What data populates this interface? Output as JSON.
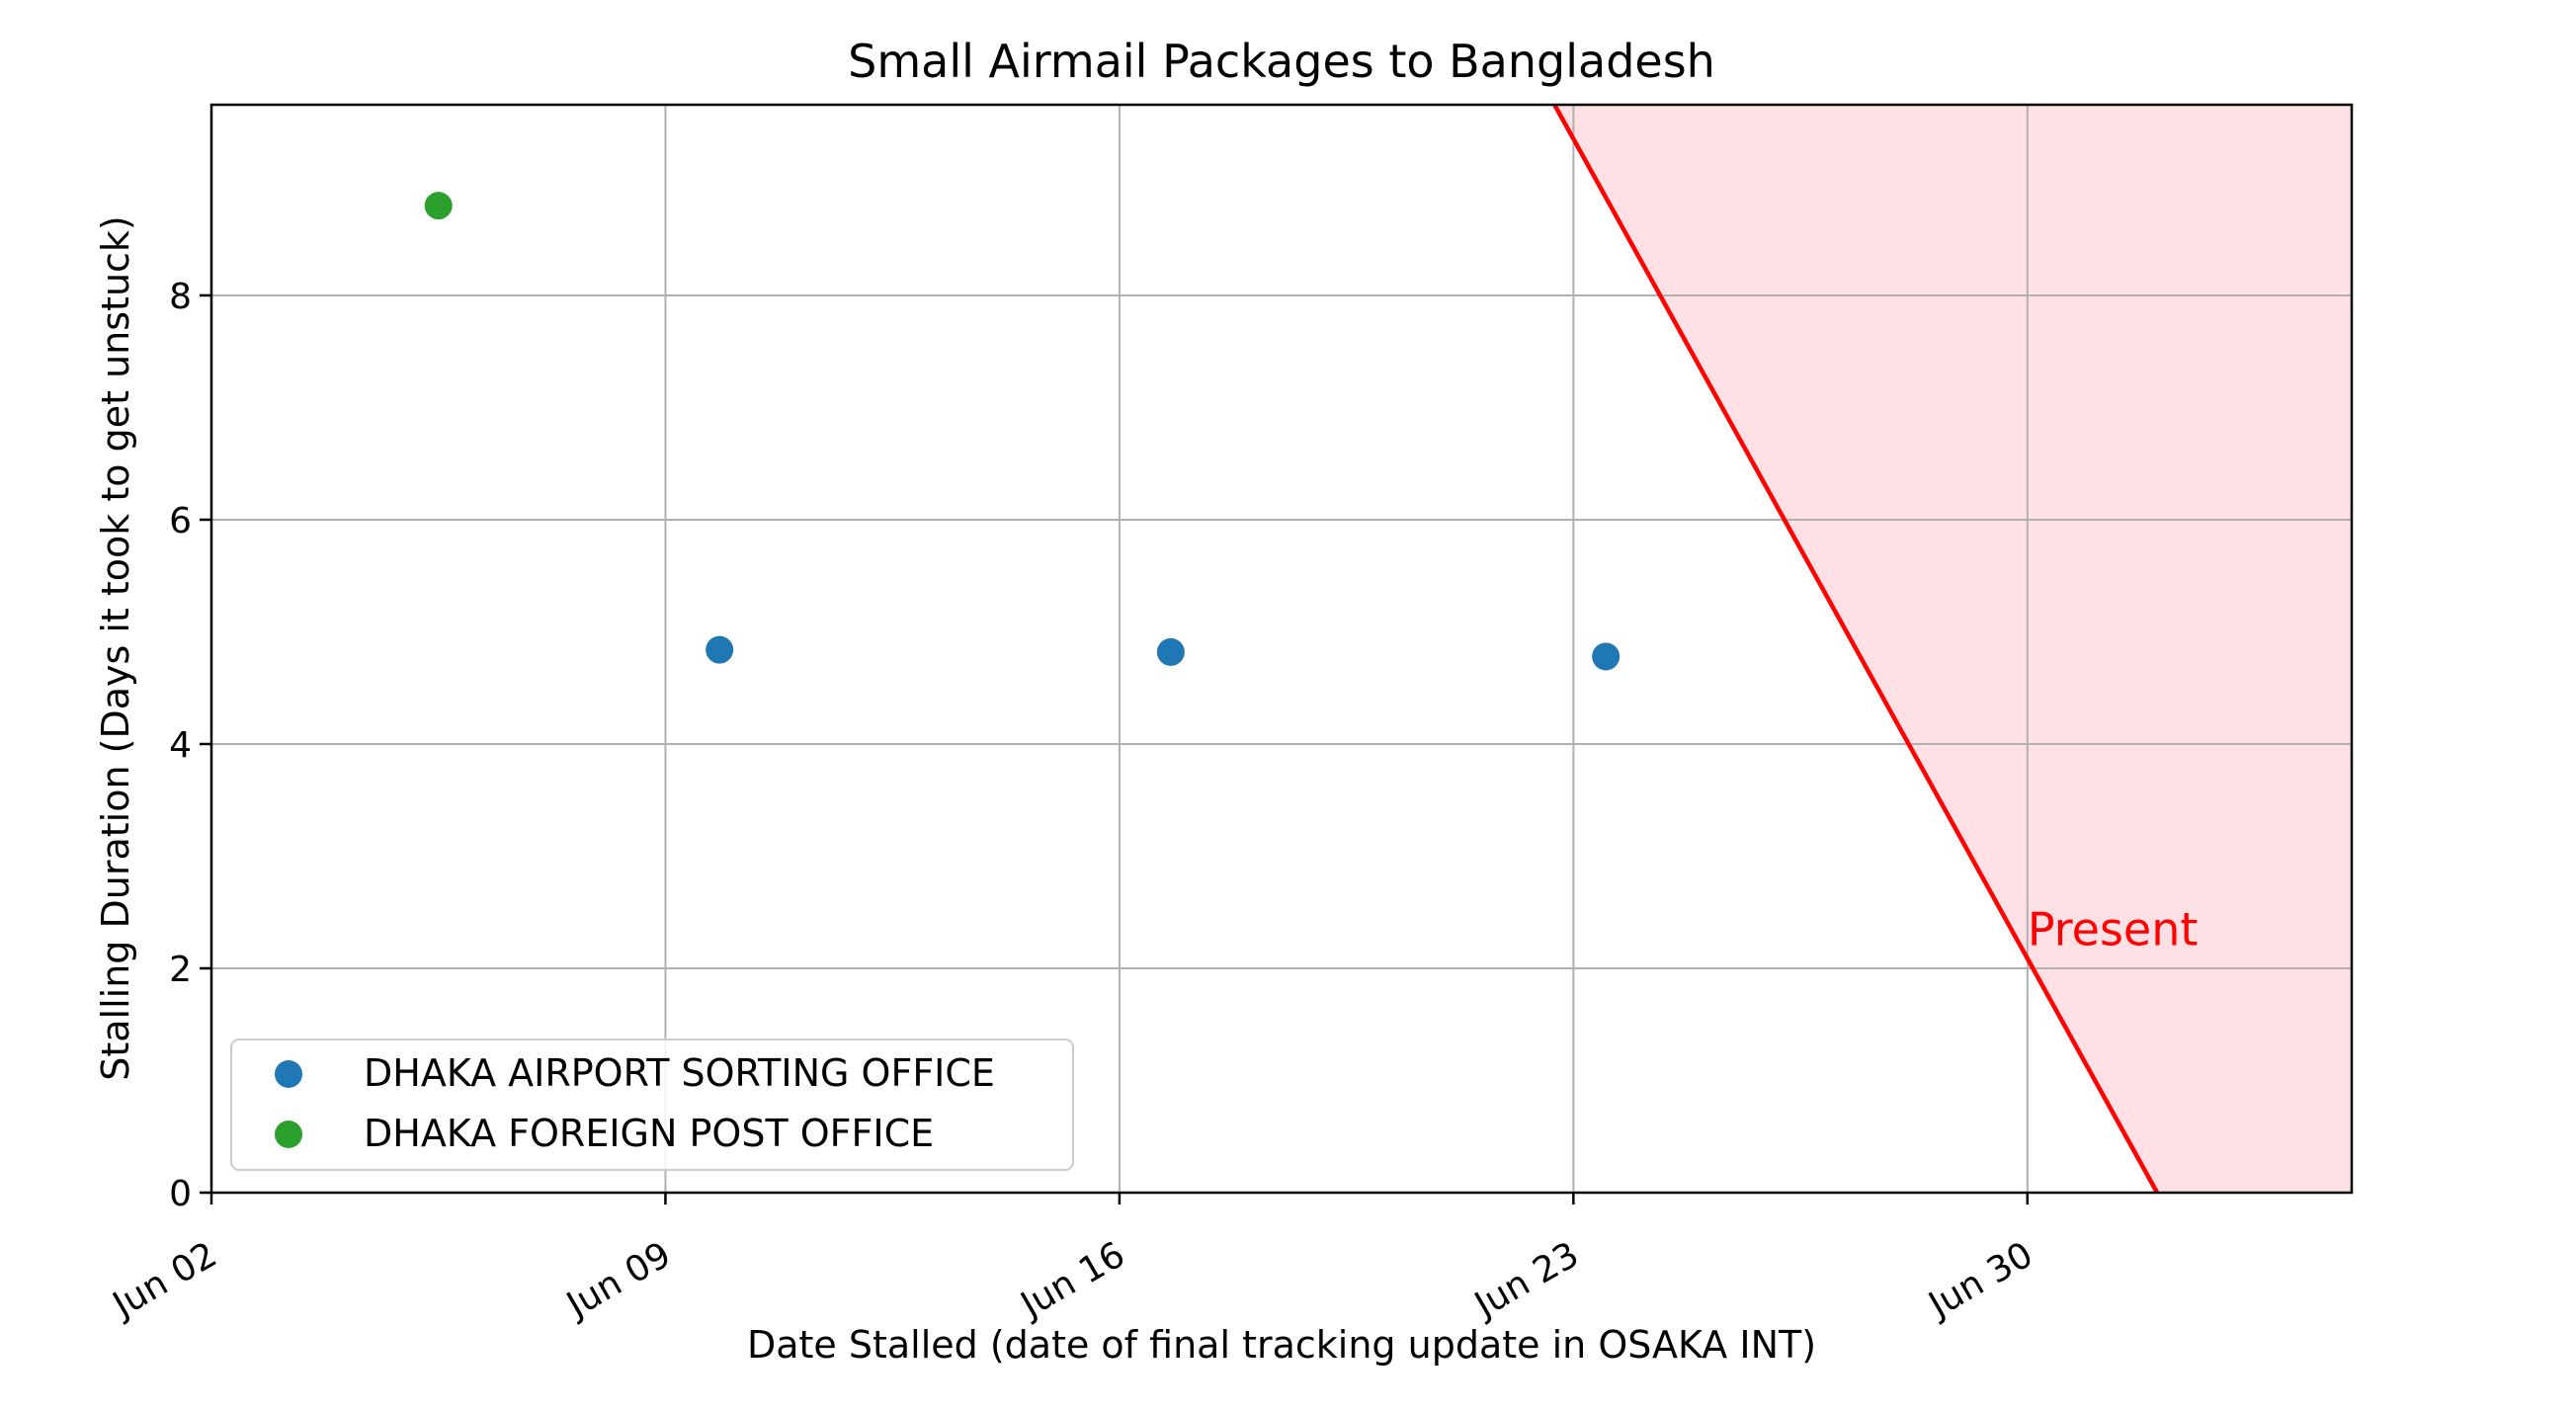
{
  "chart_data": {
    "type": "scatter",
    "title": "Small Airmail Packages to Bangladesh",
    "xlabel": "Date Stalled (date of final tracking update in OSAKA INT)",
    "ylabel": "Stalling Duration (Days it took to get unstuck)",
    "xlim": [
      "2024-06-02",
      "2024-07-05"
    ],
    "ylim": [
      0,
      9.7
    ],
    "x_ticks": [
      {
        "date": "2024-06-02",
        "label": "Jun 02"
      },
      {
        "date": "2024-06-09",
        "label": "Jun 09"
      },
      {
        "date": "2024-06-16",
        "label": "Jun 16"
      },
      {
        "date": "2024-06-23",
        "label": "Jun 23"
      },
      {
        "date": "2024-06-30",
        "label": "Jun 30"
      }
    ],
    "y_ticks": [
      0,
      2,
      4,
      6,
      8
    ],
    "grid": true,
    "legend_position": "lower-left",
    "series": [
      {
        "name": "DHAKA AIRPORT SORTING OFFICE",
        "color": "#1f77b4",
        "points": [
          {
            "x": "2024-06-09 20:00",
            "y": 4.84
          },
          {
            "x": "2024-06-16 19:00",
            "y": 4.82
          },
          {
            "x": "2024-06-23 12:00",
            "y": 4.78
          }
        ]
      },
      {
        "name": "DHAKA FOREIGN POST OFFICE",
        "color": "#2ca02c",
        "points": [
          {
            "x": "2024-06-05 12:00",
            "y": 8.8
          }
        ]
      }
    ],
    "present_boundary": {
      "label": "Present",
      "color": "#ff0000",
      "fill_color": "#ffe0e4",
      "line": [
        {
          "x": "2024-06-22 17:00",
          "y": 9.7
        },
        {
          "x": "2024-07-02",
          "y": 0
        }
      ],
      "label_anchor": {
        "x": "2024-06-30",
        "y": 2.35
      }
    }
  }
}
